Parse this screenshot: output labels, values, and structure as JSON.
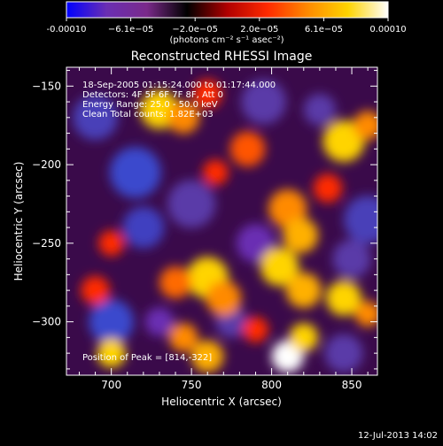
{
  "colorbar": {
    "ticks": [
      "-0.00010",
      "−6.1e−05",
      "−2.0e−05",
      "2.0e−05",
      "6.1e−05",
      "0.00010"
    ],
    "units_label": "(photons cm⁻² s⁻¹ asec⁻²)",
    "colors": [
      "#0000ff",
      "#6a2eb3",
      "#7a2a8a",
      "#000000",
      "#b00000",
      "#ff2a00",
      "#ff8a00",
      "#ffd400",
      "#ffffff"
    ]
  },
  "plot": {
    "title": "Reconstructed RHESSI Image",
    "xlabel": "Heliocentric X (arcsec)",
    "ylabel": "Heliocentric Y (arcsec)",
    "xticks": [
      "700",
      "750",
      "800",
      "850"
    ],
    "yticks": [
      "−150",
      "−200",
      "−250",
      "−300"
    ],
    "annotations": {
      "time_range": "18-Sep-2005 01:15:24.000 to 01:17:44.000",
      "detectors": "Detectors: 4F 5F 6F 7F 8F, Att 0",
      "energy": "Energy Range: 25.0 - 50.0 keV",
      "clean": "Clean    Total counts: 1.82E+03",
      "peak": "Position of Peak = [814,-322]"
    }
  },
  "footer": {
    "date": "12-Jul-2013 14:02"
  },
  "image_blobs": {
    "note_units": "data (arcsec)",
    "bright": [
      {
        "x": 730,
        "y": -165,
        "r": 12,
        "c": "#ffd400"
      },
      {
        "x": 745,
        "y": -170,
        "r": 10,
        "c": "#ff8a00"
      },
      {
        "x": 760,
        "y": -155,
        "r": 9,
        "c": "#ff2a00"
      },
      {
        "x": 785,
        "y": -190,
        "r": 11,
        "c": "#ff5500"
      },
      {
        "x": 845,
        "y": -185,
        "r": 13,
        "c": "#ffd400"
      },
      {
        "x": 860,
        "y": -175,
        "r": 9,
        "c": "#ff8a00"
      },
      {
        "x": 810,
        "y": -228,
        "r": 12,
        "c": "#ff8a00"
      },
      {
        "x": 818,
        "y": -245,
        "r": 11,
        "c": "#ffb000"
      },
      {
        "x": 805,
        "y": -265,
        "r": 12,
        "c": "#ffd400"
      },
      {
        "x": 820,
        "y": -280,
        "r": 11,
        "c": "#ffb000"
      },
      {
        "x": 760,
        "y": -272,
        "r": 13,
        "c": "#ffd400"
      },
      {
        "x": 770,
        "y": -285,
        "r": 11,
        "c": "#ff8a00"
      },
      {
        "x": 740,
        "y": -275,
        "r": 10,
        "c": "#ff6a00"
      },
      {
        "x": 690,
        "y": -280,
        "r": 9,
        "c": "#ff2a00"
      },
      {
        "x": 700,
        "y": -250,
        "r": 8,
        "c": "#ff2a00"
      },
      {
        "x": 845,
        "y": -285,
        "r": 11,
        "c": "#ffd400"
      },
      {
        "x": 860,
        "y": -295,
        "r": 8,
        "c": "#ff8a00"
      },
      {
        "x": 810,
        "y": -322,
        "r": 10,
        "c": "#ffffff"
      },
      {
        "x": 820,
        "y": -310,
        "r": 9,
        "c": "#ffd400"
      },
      {
        "x": 760,
        "y": -322,
        "r": 10,
        "c": "#ffb000"
      },
      {
        "x": 745,
        "y": -310,
        "r": 9,
        "c": "#ff8a00"
      },
      {
        "x": 700,
        "y": -320,
        "r": 9,
        "c": "#ffd400"
      },
      {
        "x": 835,
        "y": -215,
        "r": 9,
        "c": "#ff2a00"
      },
      {
        "x": 765,
        "y": -205,
        "r": 8,
        "c": "#ff2a00"
      },
      {
        "x": 790,
        "y": -305,
        "r": 8,
        "c": "#ff2a00"
      }
    ],
    "dark": [
      {
        "x": 690,
        "y": -170,
        "r": 14,
        "c": "#4a3fb8"
      },
      {
        "x": 715,
        "y": -205,
        "r": 16,
        "c": "#3a4acd"
      },
      {
        "x": 750,
        "y": -225,
        "r": 15,
        "c": "#5a3aa8"
      },
      {
        "x": 720,
        "y": -240,
        "r": 13,
        "c": "#4040c0"
      },
      {
        "x": 795,
        "y": -160,
        "r": 14,
        "c": "#5a3aa8"
      },
      {
        "x": 830,
        "y": -165,
        "r": 10,
        "c": "#5a3aa8"
      },
      {
        "x": 860,
        "y": -235,
        "r": 15,
        "c": "#4a3fb8"
      },
      {
        "x": 850,
        "y": -260,
        "r": 12,
        "c": "#5a3aa8"
      },
      {
        "x": 700,
        "y": -300,
        "r": 14,
        "c": "#3a4acd"
      },
      {
        "x": 790,
        "y": -250,
        "r": 12,
        "c": "#6a2eb3"
      },
      {
        "x": 775,
        "y": -300,
        "r": 10,
        "c": "#5a3aa8"
      },
      {
        "x": 845,
        "y": -320,
        "r": 12,
        "c": "#5a3aa8"
      },
      {
        "x": 730,
        "y": -300,
        "r": 9,
        "c": "#6a2eb3"
      }
    ]
  }
}
